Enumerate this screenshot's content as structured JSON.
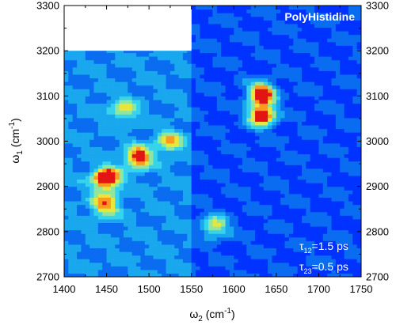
{
  "chart_data": {
    "type": "heatmap",
    "title": "PolyHistidine",
    "xlabel": {
      "symbol": "ω",
      "sub": "2",
      "unit_pre": " (cm",
      "sup": "-1",
      "unit_post": ")"
    },
    "ylabel": {
      "symbol": "ω",
      "sub": "1",
      "unit_pre": " (cm",
      "sup": "-1",
      "unit_post": ")"
    },
    "xlim": [
      1400,
      1750
    ],
    "ylim": [
      2700,
      3300
    ],
    "x_ticks": [
      "1400",
      "1450",
      "1500",
      "1550",
      "1600",
      "1650",
      "1700",
      "1750"
    ],
    "y_ticks": [
      "2700",
      "2800",
      "2900",
      "3000",
      "3100",
      "3200",
      "3300"
    ],
    "annotations": [
      {
        "symbol": "τ",
        "sub": "12",
        "text": "=1.5 ps"
      },
      {
        "symbol": "τ",
        "sub": "23",
        "text": "=0.5 ps"
      }
    ],
    "blank_region": {
      "x": [
        1400,
        1550
      ],
      "y": [
        3200,
        3300
      ]
    },
    "panels": [
      {
        "x": [
          1400,
          1550
        ],
        "y": [
          2700,
          3200
        ],
        "base_level": 0.32
      },
      {
        "x": [
          1550,
          1750
        ],
        "y": [
          2700,
          3300
        ],
        "base_level": 0.18
      }
    ],
    "peaks": [
      {
        "x": 1450,
        "y": 2918,
        "level": 1.0
      },
      {
        "x": 1488,
        "y": 2965,
        "level": 0.78
      },
      {
        "x": 1448,
        "y": 2860,
        "level": 0.62
      },
      {
        "x": 1633,
        "y": 3106,
        "level": 1.0
      },
      {
        "x": 1633,
        "y": 3058,
        "level": 0.98
      },
      {
        "x": 1578,
        "y": 2812,
        "level": 0.58
      },
      {
        "x": 1525,
        "y": 3000,
        "level": 0.5
      },
      {
        "x": 1470,
        "y": 3070,
        "level": 0.45
      }
    ],
    "colormap": [
      "#0000c8",
      "#0033ff",
      "#0a6cf0",
      "#19a7ee",
      "#36d3ec",
      "#8fe6a0",
      "#e6e63c",
      "#ff9a1e",
      "#e21414"
    ],
    "grid": false,
    "legend": "none"
  }
}
